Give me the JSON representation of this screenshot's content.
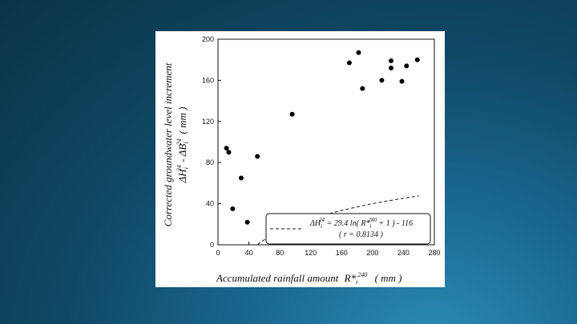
{
  "colors": {
    "background": "#14587c",
    "card": "#ffffff",
    "ink": "#111111"
  },
  "chart_data": {
    "type": "scatter",
    "xlabel": "Accumulated rainfall amount",
    "xlabel_sym": "R*",
    "xlabel_sub": "i",
    "xlabel_sup": "240",
    "xlabel_unit": "( mm )",
    "ylabel_line1": "Corrected groundwater level increment",
    "ylabel_line2_a": "ΔH",
    "ylabel_line2_a_sub": "i",
    "ylabel_line2_a_sup": "24",
    "ylabel_line2_mid": " - ΔB",
    "ylabel_line2_b_sub": "i",
    "ylabel_line2_b_sup": "24",
    "ylabel_line2_unit": "( mm )",
    "xlim": [
      0,
      280
    ],
    "ylim": [
      0,
      200
    ],
    "xticks": [
      0,
      40,
      80,
      120,
      160,
      200,
      240,
      280
    ],
    "yticks": [
      0,
      40,
      80,
      120,
      160,
      200
    ],
    "points": [
      {
        "x": 11,
        "y": 94
      },
      {
        "x": 14,
        "y": 90
      },
      {
        "x": 19,
        "y": 35
      },
      {
        "x": 30,
        "y": 65
      },
      {
        "x": 38,
        "y": 22
      },
      {
        "x": 51,
        "y": 86
      },
      {
        "x": 96,
        "y": 127
      },
      {
        "x": 170,
        "y": 177
      },
      {
        "x": 182,
        "y": 187
      },
      {
        "x": 187,
        "y": 152
      },
      {
        "x": 212,
        "y": 160
      },
      {
        "x": 224,
        "y": 179
      },
      {
        "x": 224,
        "y": 172
      },
      {
        "x": 238,
        "y": 159
      },
      {
        "x": 244,
        "y": 174
      },
      {
        "x": 258,
        "y": 180
      }
    ],
    "fit": {
      "a": 29.4,
      "b": -116,
      "x_range": [
        0,
        260
      ]
    },
    "legend": {
      "equation": "ΔH",
      "equation_sup": "24",
      "equation_sub": "i",
      "equation_mid": " = 29.4 ln( R*",
      "equation_mid_sub": "i",
      "equation_mid_sup": "240",
      "equation_tail": " + 1 ) - 116",
      "r_text": "( r = 0.8134 )",
      "placement": "bottom-right"
    }
  }
}
